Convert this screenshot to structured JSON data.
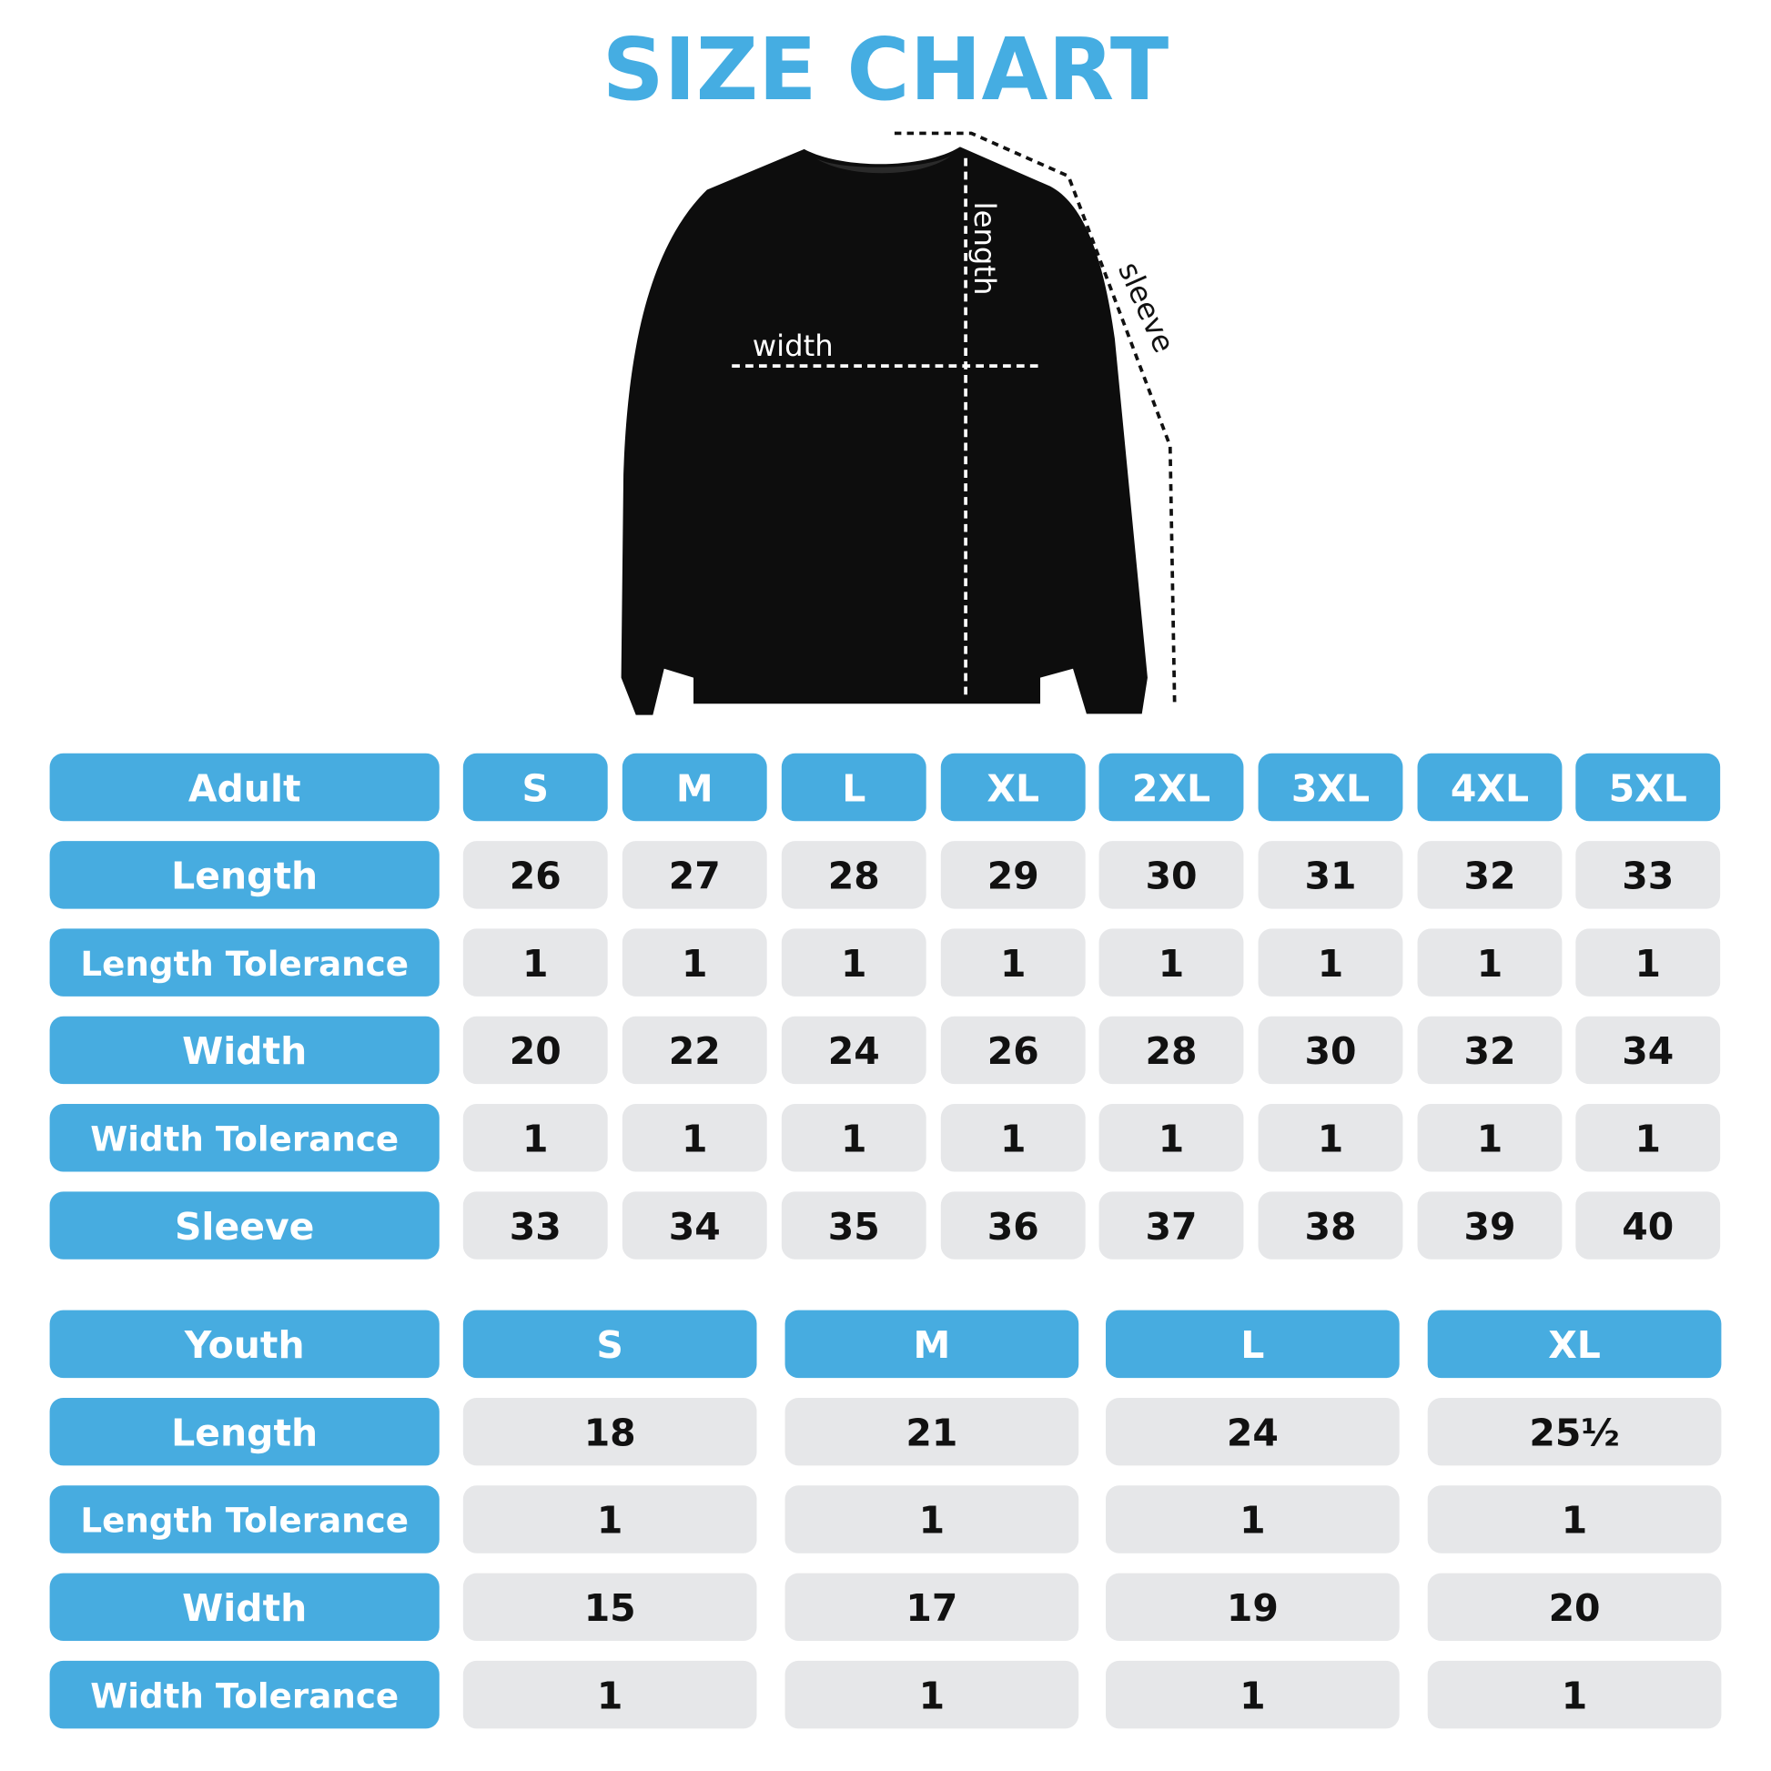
{
  "title": "SIZE CHART",
  "diagram": {
    "width_label": "width",
    "length_label": "length",
    "sleeve_label": "sleeve"
  },
  "adult_table": {
    "header": [
      "Adult",
      "S",
      "M",
      "L",
      "XL",
      "2XL",
      "3XL",
      "4XL",
      "5XL"
    ],
    "rows": [
      [
        "Length",
        26,
        27,
        28,
        29,
        30,
        31,
        32,
        33
      ],
      [
        "Length Tolerance",
        1,
        1,
        1,
        1,
        1,
        1,
        1,
        1
      ],
      [
        "Width",
        20,
        22,
        24,
        26,
        28,
        30,
        32,
        34
      ],
      [
        "Width Tolerance",
        1,
        1,
        1,
        1,
        1,
        1,
        1,
        1
      ],
      [
        "Sleeve",
        33,
        34,
        35,
        36,
        37,
        38,
        39,
        40
      ]
    ]
  },
  "youth_table": {
    "header": [
      "Youth",
      "S",
      "M",
      "L",
      "XL"
    ],
    "rows": [
      [
        "Length",
        18,
        21,
        24,
        "25½"
      ],
      [
        "Length Tolerance",
        1,
        1,
        1,
        1
      ],
      [
        "Width",
        15,
        17,
        19,
        20
      ],
      [
        "Width Tolerance",
        1,
        1,
        1,
        1
      ]
    ]
  }
}
